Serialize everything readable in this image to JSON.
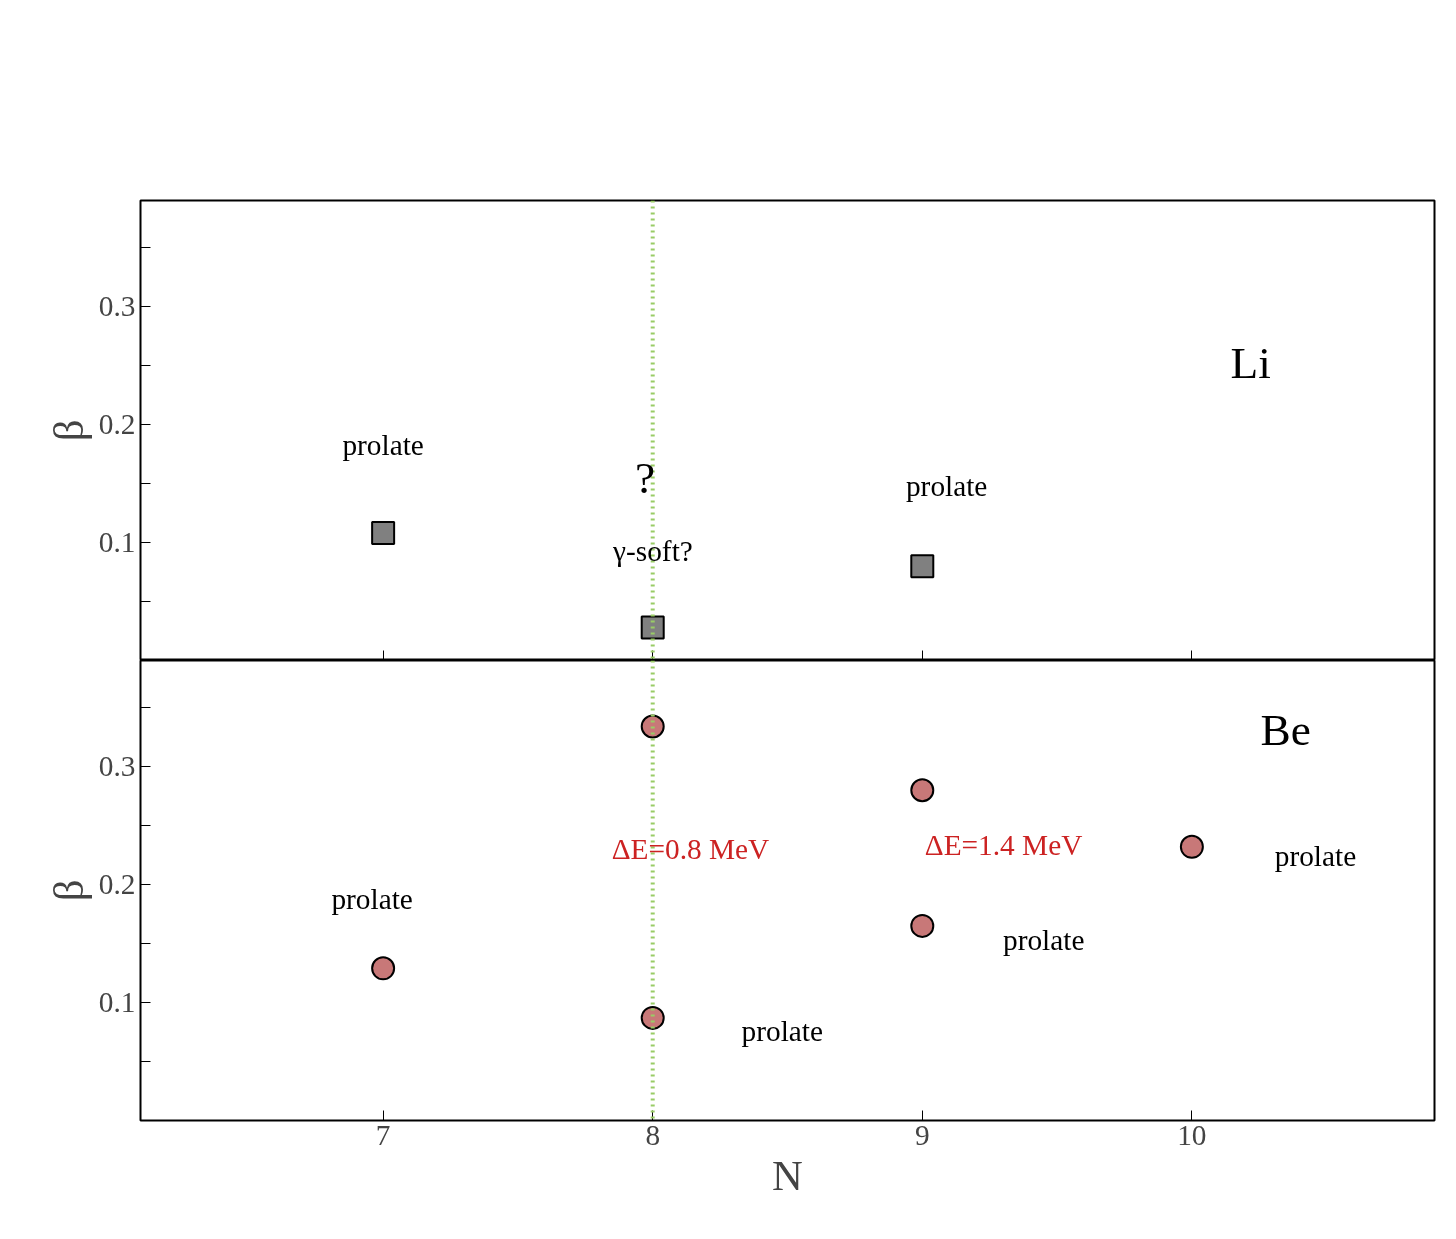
{
  "chart_data": [
    {
      "type": "scatter",
      "ylabel": "β",
      "x": [
        7,
        8,
        9
      ],
      "xlim": [
        6.1,
        10.9
      ],
      "xticks": [
        7,
        8,
        9,
        10
      ],
      "ylim": [
        0,
        0.39
      ],
      "yticks": [
        {
          "value": 0.05,
          "label": null
        },
        0.1,
        {
          "value": 0.15,
          "label": null
        },
        0.2,
        {
          "value": 0.25,
          "label": null
        },
        0.3,
        {
          "value": 0.35,
          "label": null
        }
      ],
      "tick_labels": "y",
      "grid": false,
      "marker": "square",
      "series": [
        {
          "color": "#808080",
          "values": [
            0.108,
            0.028,
            0.08
          ]
        }
      ],
      "ref_lines": [
        {
          "axis": "x",
          "value": 8,
          "color": "#99cc66",
          "line_style": "dotted"
        }
      ],
      "annotations": [
        "Li",
        "prolate",
        "?",
        "γ-soft?",
        "prolate"
      ]
    },
    {
      "type": "scatter",
      "ylabel": "β",
      "xlabel": "N",
      "x": [
        7,
        8,
        8,
        9,
        9,
        10
      ],
      "xlim": [
        6.1,
        10.9
      ],
      "xticks": [
        7,
        8,
        9,
        10
      ],
      "ylim": [
        0,
        0.39
      ],
      "yticks": [
        {
          "value": 0.05,
          "label": null
        },
        0.1,
        {
          "value": 0.15,
          "label": null
        },
        0.2,
        {
          "value": 0.25,
          "label": null
        },
        0.3,
        {
          "value": 0.35,
          "label": null
        }
      ],
      "grid": false,
      "marker": "circle",
      "series": [
        {
          "color": "#c87878",
          "values": [
            0.129,
            0.334,
            0.087,
            0.28,
            0.165,
            0.232
          ]
        }
      ],
      "ref_lines": [
        {
          "axis": "x",
          "value": 8,
          "color": "#99cc66",
          "line_style": "dotted"
        }
      ],
      "annotations": [
        "Be",
        "prolate",
        "ΔE=0.8 MeV",
        "ΔE=1.4 MeV",
        "prolate",
        "prolate",
        "prolate"
      ]
    }
  ]
}
